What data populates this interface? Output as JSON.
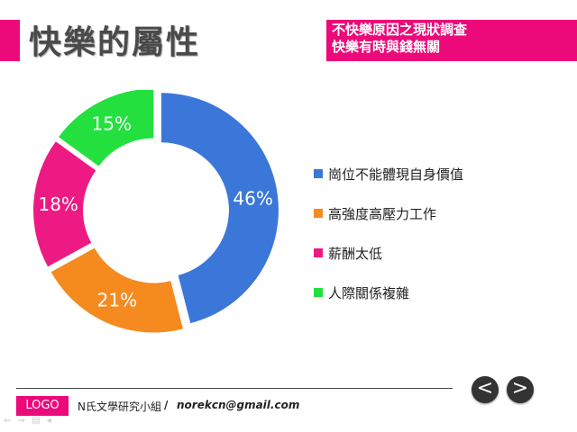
{
  "header": {
    "title": "快樂的屬性",
    "subtitle_line1": "不快樂原因之現狀調查",
    "subtitle_line2": "快樂有時與錢無關"
  },
  "chart_data": {
    "type": "pie",
    "donut": true,
    "slices": [
      {
        "label": "崗位不能體現自身價值",
        "value": 46,
        "label_text": "46%",
        "color": "#3b77d8"
      },
      {
        "label": "高強度高壓力工作",
        "value": 21,
        "label_text": "21%",
        "color": "#f58a1f"
      },
      {
        "label": "薪酬太低",
        "value": 18,
        "label_text": "18%",
        "color": "#ec1a82"
      },
      {
        "label": "人際關係複雜",
        "value": 15,
        "label_text": "15%",
        "color": "#23e03f"
      }
    ],
    "legend_position": "right"
  },
  "footer": {
    "logo": "LOGO",
    "group_name": "N氏文學研究小組",
    "slash": "/",
    "email": "norekcn@gmail.com",
    "prev_glyph": "<",
    "next_glyph": ">"
  },
  "mini_nav_glyphs": "⇐ ⇒ ▤ ◂"
}
